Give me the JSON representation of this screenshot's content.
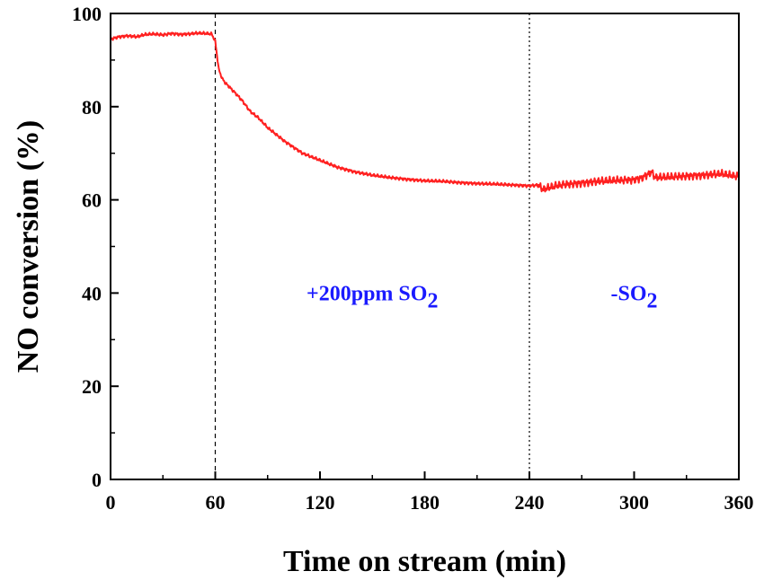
{
  "chart_data": {
    "type": "line",
    "xlabel": "Time on stream (min)",
    "ylabel": "NO conversion (%)",
    "xlim": [
      0,
      360
    ],
    "ylim": [
      0,
      100
    ],
    "xticks": [
      "0",
      "60",
      "120",
      "180",
      "240",
      "300",
      "360"
    ],
    "yticks": [
      "0",
      "20",
      "40",
      "60",
      "80",
      "100"
    ],
    "grid": false,
    "series": [
      {
        "color": "#ff2020",
        "points": [
          [
            0,
            94.5
          ],
          [
            5,
            95.0
          ],
          [
            10,
            95.2
          ],
          [
            15,
            95.0
          ],
          [
            20,
            95.5
          ],
          [
            25,
            95.6
          ],
          [
            30,
            95.4
          ],
          [
            35,
            95.7
          ],
          [
            40,
            95.5
          ],
          [
            45,
            95.6
          ],
          [
            50,
            95.8
          ],
          [
            55,
            95.7
          ],
          [
            58,
            95.6
          ],
          [
            60,
            94.0
          ],
          [
            61,
            91.0
          ],
          [
            62,
            88.0
          ],
          [
            64,
            86.0
          ],
          [
            66,
            85.0
          ],
          [
            70,
            83.5
          ],
          [
            75,
            81.5
          ],
          [
            80,
            79.0
          ],
          [
            85,
            77.5
          ],
          [
            90,
            75.5
          ],
          [
            95,
            74.0
          ],
          [
            100,
            72.5
          ],
          [
            110,
            70.0
          ],
          [
            120,
            68.5
          ],
          [
            130,
            67.0
          ],
          [
            140,
            66.0
          ],
          [
            150,
            65.3
          ],
          [
            160,
            64.8
          ],
          [
            170,
            64.4
          ],
          [
            180,
            64.1
          ],
          [
            190,
            64.0
          ],
          [
            200,
            63.7
          ],
          [
            210,
            63.5
          ],
          [
            220,
            63.4
          ],
          [
            230,
            63.2
          ],
          [
            240,
            63.0
          ],
          [
            245,
            63.2
          ],
          [
            248,
            62.2
          ],
          [
            250,
            62.5
          ],
          [
            255,
            63.0
          ],
          [
            260,
            63.3
          ],
          [
            270,
            63.6
          ],
          [
            280,
            64.0
          ],
          [
            290,
            64.2
          ],
          [
            300,
            64.3
          ],
          [
            305,
            64.8
          ],
          [
            310,
            66.0
          ],
          [
            312,
            64.8
          ],
          [
            320,
            64.9
          ],
          [
            330,
            65.1
          ],
          [
            340,
            65.3
          ],
          [
            350,
            65.6
          ],
          [
            360,
            65.0
          ]
        ]
      }
    ],
    "vlines": [
      {
        "x": 60,
        "style": "dashed"
      },
      {
        "x": 240,
        "style": "dotted"
      }
    ],
    "annotations": [
      {
        "text": "+200ppm SO",
        "subscript": "2",
        "x": 150,
        "y": 40,
        "color": "#1a1aff"
      },
      {
        "text": "-SO",
        "subscript": "2",
        "x": 300,
        "y": 40,
        "color": "#1a1aff"
      }
    ]
  }
}
